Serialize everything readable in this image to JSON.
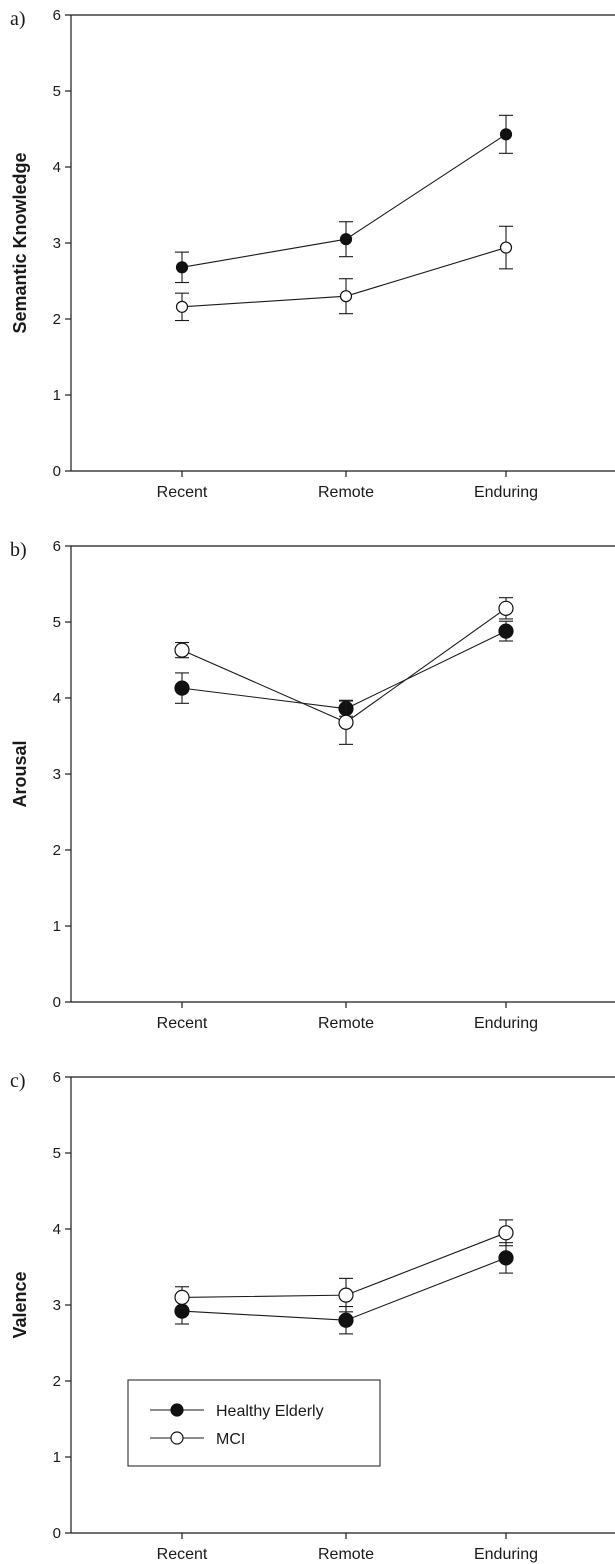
{
  "chart_data": [
    {
      "type": "line",
      "panel_letter": "a)",
      "ylabel": "Semantic Knowledge",
      "categories": [
        "Recent",
        "Remote",
        "Enduring"
      ],
      "ylim": [
        0,
        6
      ],
      "yticks": [
        "0",
        "1",
        "2",
        "3",
        "4",
        "5",
        "6"
      ],
      "series": [
        {
          "name": "Healthy Elderly",
          "marker": "filled-circle",
          "values": [
            2.68,
            3.05,
            4.43
          ],
          "errors": [
            0.2,
            0.23,
            0.25
          ]
        },
        {
          "name": "MCI",
          "marker": "open-circle",
          "values": [
            2.16,
            2.3,
            2.94
          ],
          "errors": [
            0.18,
            0.23,
            0.28
          ]
        }
      ]
    },
    {
      "type": "line",
      "panel_letter": "b)",
      "ylabel": "Arousal",
      "categories": [
        "Recent",
        "Remote",
        "Enduring"
      ],
      "ylim": [
        0,
        6
      ],
      "yticks": [
        "0",
        "1",
        "2",
        "3",
        "4",
        "5",
        "6"
      ],
      "series": [
        {
          "name": "Healthy Elderly",
          "marker": "filled-circle",
          "values": [
            4.13,
            3.86,
            4.88
          ],
          "errors": [
            0.2,
            0.1,
            0.13
          ]
        },
        {
          "name": "MCI",
          "marker": "open-circle",
          "values": [
            4.63,
            3.68,
            5.18
          ],
          "errors": [
            0.1,
            0.29,
            0.14
          ]
        }
      ]
    },
    {
      "type": "line",
      "panel_letter": "c)",
      "ylabel": "Valence",
      "categories": [
        "Recent",
        "Remote",
        "Enduring"
      ],
      "ylim": [
        0,
        6
      ],
      "yticks": [
        "0",
        "1",
        "2",
        "3",
        "4",
        "5",
        "6"
      ],
      "series": [
        {
          "name": "Healthy Elderly",
          "marker": "filled-circle",
          "values": [
            2.92,
            2.8,
            3.62
          ],
          "errors": [
            0.17,
            0.18,
            0.2
          ]
        },
        {
          "name": "MCI",
          "marker": "open-circle",
          "values": [
            3.1,
            3.13,
            3.95
          ],
          "errors": [
            0.14,
            0.22,
            0.17
          ]
        }
      ],
      "legend": {
        "placement": "bottom-left",
        "entries": [
          "Healthy Elderly",
          "MCI"
        ]
      }
    }
  ]
}
